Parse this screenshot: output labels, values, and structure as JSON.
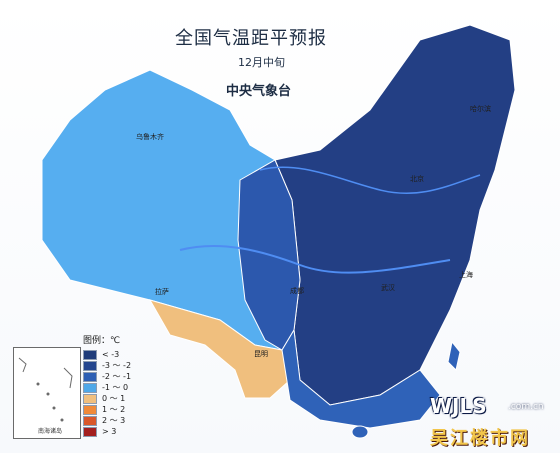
{
  "title": "全国气温距平预报",
  "subtitle": "12月中旬",
  "agency": "中央气象台",
  "legend": {
    "title": "图例：℃",
    "items": [
      {
        "label": "< -3",
        "color": "#1f3c7a"
      },
      {
        "label": "-3 ～ -2",
        "color": "#23458e"
      },
      {
        "label": "-2 ～ -1",
        "color": "#2d5fb4"
      },
      {
        "label": "-1 ～ 0",
        "color": "#4fa8e8"
      },
      {
        "label": "0 ～ 1",
        "color": "#f0bf7e"
      },
      {
        "label": "1 ～ 2",
        "color": "#f08a39"
      },
      {
        "label": "2 ～ 3",
        "color": "#d9572a"
      },
      {
        "label": "> 3",
        "color": "#a31f1f"
      }
    ]
  },
  "inset_label": "南海诸岛",
  "cities": [
    {
      "key": "harbin",
      "name": "哈尔滨"
    },
    {
      "key": "urumqi",
      "name": "乌鲁木齐"
    },
    {
      "key": "lhasa",
      "name": "拉萨"
    },
    {
      "key": "kunming",
      "name": "昆明"
    },
    {
      "key": "shanghai",
      "name": "上海"
    },
    {
      "key": "wuhan",
      "name": "武汉"
    },
    {
      "key": "chengdu",
      "name": "成都"
    },
    {
      "key": "beijing",
      "name": "北京"
    }
  ],
  "watermark": {
    "site": "WJLS",
    "domain": ".com.cn",
    "brand": "吴江楼市网"
  }
}
